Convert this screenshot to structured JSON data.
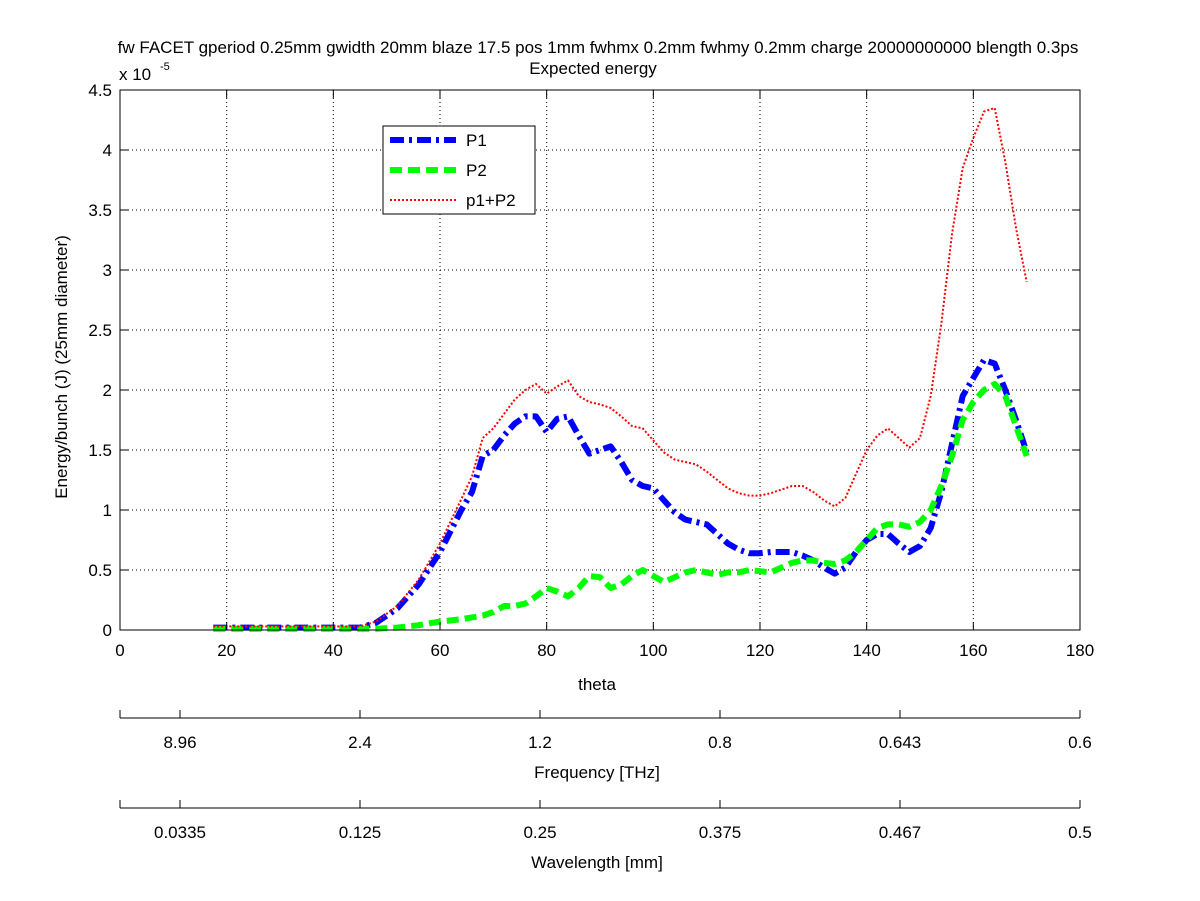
{
  "figure": {
    "title_line1": "fw FACET gperiod 0.25mm gwidth 20mm blaze 17.5 pos 1mm fwhmx 0.2mm fwhmy 0.2mm charge 20000000000 blength 0.3ps",
    "title_line2": "Expected energy",
    "exponent_base": "x 10",
    "exponent_power": "-5"
  },
  "chart_data": {
    "type": "line",
    "title": "Expected energy",
    "xlabel": "theta",
    "ylabel": "Energy/bunch (J)  (25mm diameter)",
    "xlim": [
      0,
      180
    ],
    "ylim": [
      0,
      4.5
    ],
    "y_scale_factor": "1e-5",
    "xticks": [
      0,
      20,
      40,
      60,
      80,
      100,
      120,
      140,
      160,
      180
    ],
    "xtick_labels": [
      "0",
      "20",
      "40",
      "60",
      "80",
      "100",
      "120",
      "140",
      "160",
      "180"
    ],
    "yticks": [
      0,
      0.5,
      1,
      1.5,
      2,
      2.5,
      3,
      3.5,
      4,
      4.5
    ],
    "ytick_labels": [
      "0",
      "0.5",
      "1",
      "1.5",
      "2",
      "2.5",
      "3",
      "3.5",
      "4",
      "4.5"
    ],
    "grid": true,
    "legend_position": "top-left",
    "series": [
      {
        "name": "P1",
        "color": "#0000ff",
        "style": "dashdot",
        "x": [
          17.5,
          25,
          30,
          35,
          40,
          45,
          48,
          52,
          56,
          60,
          64,
          66,
          68,
          70,
          72,
          74,
          76,
          78,
          80,
          82,
          84,
          86,
          88,
          90,
          92,
          94,
          96,
          98,
          100,
          102,
          104,
          106,
          108,
          110,
          112,
          114,
          116,
          118,
          120,
          122,
          124,
          126,
          128,
          130,
          132,
          134,
          136,
          138,
          140,
          142,
          144,
          146,
          148,
          150,
          152,
          154,
          156,
          158,
          160,
          162,
          164,
          166,
          168,
          170
        ],
        "y": [
          0.02,
          0.02,
          0.02,
          0.02,
          0.02,
          0.02,
          0.06,
          0.18,
          0.38,
          0.65,
          1.0,
          1.15,
          1.45,
          1.5,
          1.62,
          1.72,
          1.78,
          1.78,
          1.65,
          1.76,
          1.78,
          1.62,
          1.47,
          1.5,
          1.53,
          1.4,
          1.25,
          1.2,
          1.18,
          1.08,
          0.98,
          0.92,
          0.9,
          0.88,
          0.8,
          0.72,
          0.67,
          0.64,
          0.64,
          0.65,
          0.65,
          0.65,
          0.62,
          0.58,
          0.52,
          0.47,
          0.52,
          0.65,
          0.75,
          0.8,
          0.8,
          0.72,
          0.65,
          0.7,
          0.85,
          1.15,
          1.55,
          1.95,
          2.1,
          2.25,
          2.22,
          2.0,
          1.75,
          1.48
        ]
      },
      {
        "name": "P2",
        "color": "#00ff00",
        "style": "dashed",
        "x": [
          17.5,
          25,
          30,
          35,
          40,
          45,
          48,
          52,
          56,
          60,
          64,
          68,
          70,
          72,
          74,
          76,
          78,
          80,
          82,
          84,
          86,
          88,
          90,
          92,
          94,
          96,
          98,
          100,
          102,
          104,
          106,
          108,
          110,
          112,
          114,
          116,
          118,
          120,
          122,
          124,
          126,
          128,
          130,
          132,
          134,
          136,
          138,
          140,
          142,
          144,
          146,
          148,
          150,
          152,
          154,
          156,
          158,
          160,
          162,
          164,
          166,
          168,
          170
        ],
        "y": [
          0.01,
          0.01,
          0.01,
          0.01,
          0.01,
          0.01,
          0.01,
          0.02,
          0.04,
          0.07,
          0.09,
          0.12,
          0.15,
          0.2,
          0.2,
          0.22,
          0.28,
          0.35,
          0.32,
          0.28,
          0.35,
          0.45,
          0.44,
          0.35,
          0.38,
          0.45,
          0.5,
          0.45,
          0.4,
          0.44,
          0.48,
          0.5,
          0.48,
          0.46,
          0.48,
          0.48,
          0.5,
          0.49,
          0.48,
          0.52,
          0.56,
          0.58,
          0.58,
          0.56,
          0.55,
          0.58,
          0.65,
          0.75,
          0.85,
          0.88,
          0.88,
          0.86,
          0.9,
          1.0,
          1.2,
          1.45,
          1.75,
          1.9,
          2.0,
          2.05,
          1.95,
          1.7,
          1.45
        ]
      },
      {
        "name": "p1+P2",
        "color": "#ff0000",
        "style": "dotted",
        "x": [
          17.5,
          25,
          30,
          35,
          40,
          45,
          48,
          52,
          56,
          60,
          64,
          66,
          68,
          70,
          72,
          74,
          76,
          78,
          80,
          82,
          84,
          86,
          88,
          90,
          92,
          94,
          96,
          98,
          100,
          102,
          104,
          106,
          108,
          110,
          112,
          114,
          116,
          118,
          120,
          122,
          124,
          126,
          128,
          130,
          132,
          134,
          136,
          138,
          140,
          142,
          144,
          146,
          148,
          150,
          152,
          154,
          156,
          158,
          160,
          162,
          164,
          166,
          168,
          170
        ],
        "y": [
          0.03,
          0.03,
          0.03,
          0.03,
          0.03,
          0.03,
          0.07,
          0.2,
          0.42,
          0.72,
          1.09,
          1.28,
          1.6,
          1.68,
          1.8,
          1.92,
          2.0,
          2.05,
          1.97,
          2.03,
          2.08,
          1.95,
          1.9,
          1.88,
          1.85,
          1.78,
          1.7,
          1.68,
          1.58,
          1.48,
          1.42,
          1.4,
          1.38,
          1.32,
          1.25,
          1.18,
          1.14,
          1.12,
          1.12,
          1.14,
          1.17,
          1.2,
          1.2,
          1.15,
          1.08,
          1.03,
          1.1,
          1.3,
          1.5,
          1.62,
          1.68,
          1.6,
          1.52,
          1.6,
          1.95,
          2.55,
          3.3,
          3.85,
          4.1,
          4.32,
          4.35,
          3.9,
          3.35,
          2.9
        ]
      }
    ],
    "secondary_axes": [
      {
        "label": "Frequency [THz]",
        "tick_labels": [
          "8.96",
          "2.4",
          "1.2",
          "0.8",
          "0.643",
          "0.6"
        ]
      },
      {
        "label": "Wavelength [mm]",
        "tick_labels": [
          "0.0335",
          "0.125",
          "0.25",
          "0.375",
          "0.467",
          "0.5"
        ]
      }
    ]
  }
}
